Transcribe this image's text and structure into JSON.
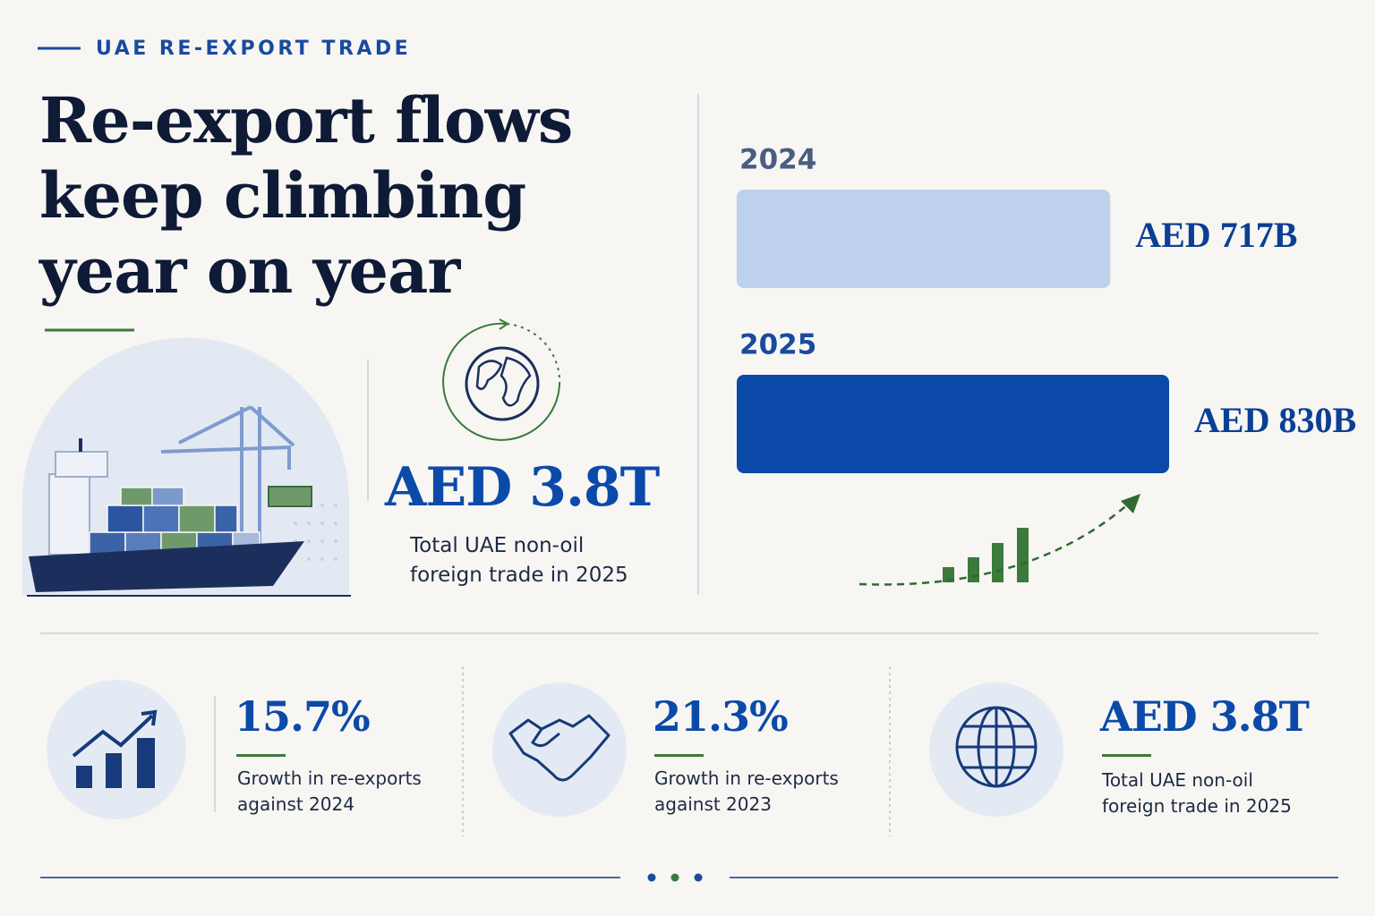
{
  "header": {
    "kicker": "UAE RE-EXPORT TRADE",
    "title_lines": [
      "Re-export flows",
      "keep climbing",
      "year on year"
    ]
  },
  "hero": {
    "value": "AED 3.8T",
    "label": "Total UAE non-oil foreign trade in 2025"
  },
  "chart_data": {
    "type": "bar",
    "orientation": "horizontal",
    "categories": [
      "2024",
      "2025"
    ],
    "values": [
      717,
      830
    ],
    "value_labels": [
      "AED 717B",
      "AED 830B"
    ],
    "colors": [
      "#bdd0ec",
      "#0b4aa8"
    ]
  },
  "stats": [
    {
      "value": "15.7%",
      "label": "Growth in re-exports against 2024"
    },
    {
      "value": "21.3%",
      "label": "Growth in re-exports against 2023"
    },
    {
      "value": "AED 3.8T",
      "label": "Total UAE non-oil foreign trade in 2025"
    }
  ]
}
